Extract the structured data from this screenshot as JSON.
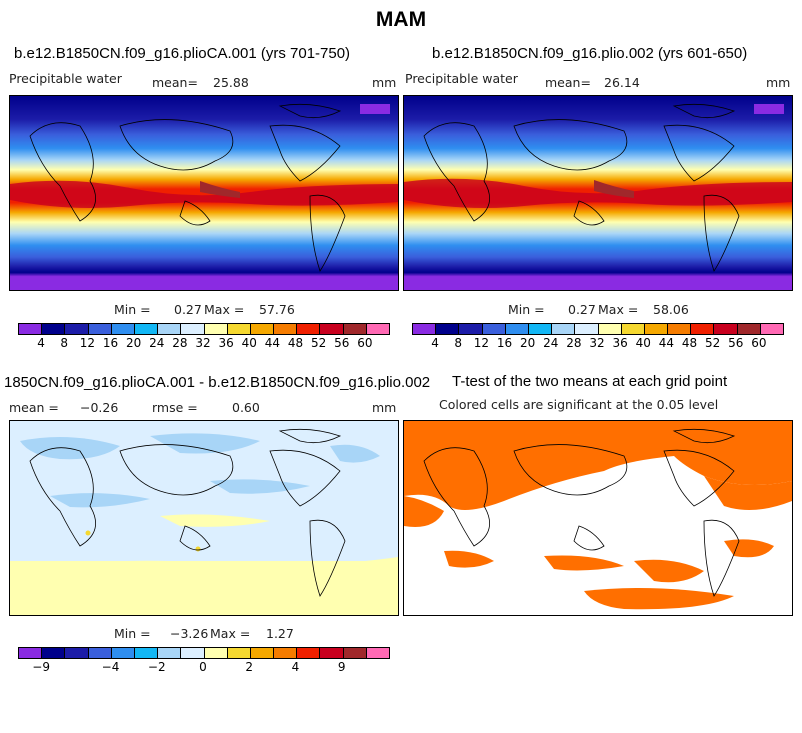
{
  "figure_title": "MAM",
  "panels": {
    "p1": {
      "title": "b.e12.B1850CN.f09_g16.plioCA.001 (yrs 701-750)",
      "var_label": "Precipitable water",
      "mean_label": "mean=",
      "mean_value": "25.88",
      "units": "mm",
      "minmax_min_label": "Min =",
      "minmax_min": "0.27",
      "minmax_max_label": "Max =",
      "minmax_max": "57.76"
    },
    "p2": {
      "title": "b.e12.B1850CN.f09_g16.plio.002 (yrs 601-650)",
      "var_label": "Precipitable water",
      "mean_label": "mean=",
      "mean_value": "26.14",
      "units": "mm",
      "minmax_min_label": "Min =",
      "minmax_min": "0.27",
      "minmax_max_label": "Max =",
      "minmax_max": "58.06"
    },
    "p3": {
      "title": "1850CN.f09_g16.plioCA.001 - b.e12.B1850CN.f09_g16.plio.002",
      "mean_label": "mean =",
      "mean_value": "−0.26",
      "rmse_label": "rmse =",
      "rmse_value": "0.60",
      "units": "mm",
      "minmax_min_label": "Min =",
      "minmax_min": "−3.26",
      "minmax_max_label": "Max =",
      "minmax_max": "1.27"
    },
    "p4": {
      "title": "T-test of the two means at each grid point",
      "subtitle": "Colored cells are significant at the 0.05 level",
      "significant_color": "#ff6f00"
    }
  },
  "colorbar_abs": {
    "colors": [
      "#8a2be2",
      "#00008b",
      "#1c1ca8",
      "#3a5fdc",
      "#2f8ef0",
      "#12b7f5",
      "#a8d5f7",
      "#dcefff",
      "#ffffb0",
      "#f5d830",
      "#f5a800",
      "#f57c00",
      "#f02000",
      "#c8001e",
      "#a0282b",
      "#ff69b4"
    ],
    "labels": [
      "4",
      "8",
      "12",
      "16",
      "20",
      "24",
      "28",
      "32",
      "36",
      "40",
      "44",
      "48",
      "52",
      "56",
      "60"
    ]
  },
  "colorbar_diff": {
    "colors": [
      "#8a2be2",
      "#00008b",
      "#1c1ca8",
      "#3a5fdc",
      "#2f8ef0",
      "#12b7f5",
      "#a8d5f7",
      "#dcefff",
      "#ffffb0",
      "#f5d830",
      "#f5a800",
      "#f57c00",
      "#f02000",
      "#c8001e",
      "#a0282b",
      "#ff69b4"
    ],
    "labels": [
      "−9",
      "−4",
      "−2",
      "0",
      "2",
      "4",
      "9"
    ],
    "label_boundary_index": [
      1,
      4,
      6,
      8,
      10,
      12,
      14
    ]
  }
}
